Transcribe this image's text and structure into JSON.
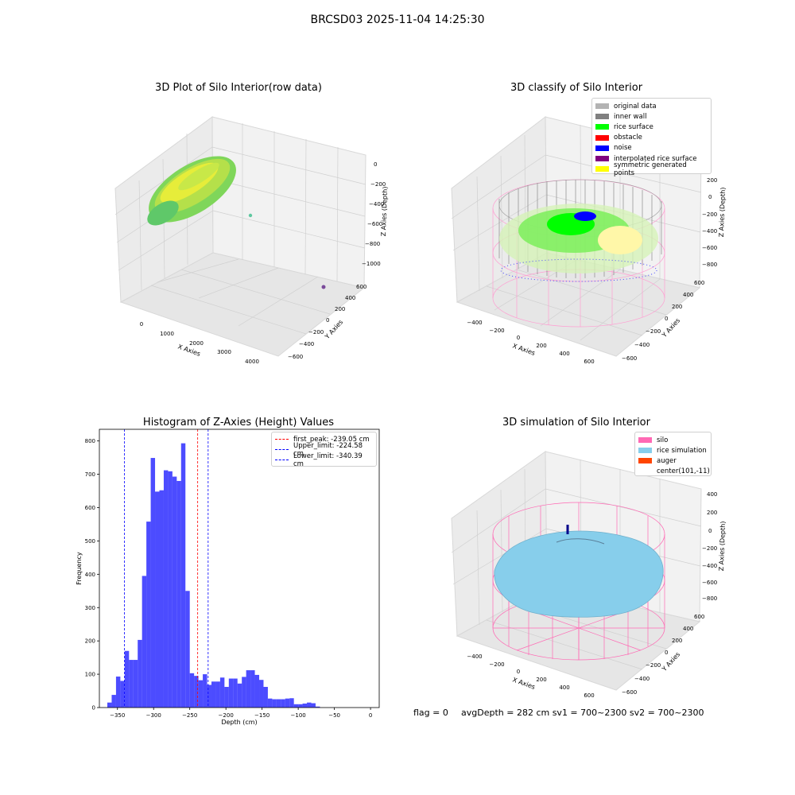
{
  "suptitle": "BRCSD03 2025-11-04 14:25:30",
  "panels": {
    "raw": {
      "title": "3D Plot of Silo Interior(row data)",
      "xlabel": "X Axies",
      "ylabel": "Y Axies",
      "zlabel": "Z Axies (Depth)",
      "xticks": [
        "0",
        "1000",
        "2000",
        "3000",
        "4000"
      ],
      "yticks": [
        "600",
        "400",
        "200",
        "0",
        "−200",
        "−400",
        "−600"
      ],
      "zticks": [
        "0",
        "−200",
        "−400",
        "−600",
        "−800",
        "−1000"
      ]
    },
    "classify": {
      "title": "3D classify of Silo Interior",
      "xlabel": "X Axies",
      "ylabel": "Y Axies",
      "zlabel": "Z Axies (Depth)",
      "xticks": [
        "−400",
        "−200",
        "0",
        "200",
        "400",
        "600"
      ],
      "yticks": [
        "600",
        "400",
        "200",
        "0",
        "−200",
        "−400",
        "−600"
      ],
      "zticks": [
        "200",
        "0",
        "−200",
        "−400",
        "−600",
        "−800"
      ],
      "legend": [
        {
          "label": "original data",
          "color": "#b3b3b3"
        },
        {
          "label": "inner wall",
          "color": "#808080"
        },
        {
          "label": "rice surface",
          "color": "#00ff00"
        },
        {
          "label": "obstacle",
          "color": "#ff0000"
        },
        {
          "label": "noise",
          "color": "#0000ff"
        },
        {
          "label": "interpolated rice surface",
          "color": "#800080"
        },
        {
          "label": "symmetric generated points",
          "color": "#ffff00"
        }
      ]
    },
    "simulation": {
      "title": "3D simulation of Silo Interior",
      "xlabel": "X Axies",
      "ylabel": "Y Axies",
      "zlabel": "Z Axies (Depth)",
      "xticks": [
        "−400",
        "−200",
        "0",
        "200",
        "400",
        "600"
      ],
      "yticks": [
        "600",
        "400",
        "200",
        "0",
        "−200",
        "−400",
        "−600"
      ],
      "zticks": [
        "400",
        "200",
        "0",
        "−200",
        "−400",
        "−600",
        "−800"
      ],
      "legend": [
        {
          "label": "silo",
          "color": "#ff69b4"
        },
        {
          "label": "rice simulation",
          "color": "#87ceeb"
        },
        {
          "label": "auger",
          "color": "#ff4500"
        },
        {
          "label": "center(101,-11)",
          "color": ""
        }
      ]
    }
  },
  "footer": {
    "flag": "flag = 0",
    "avg": "avgDepth = 282 cm  sv1 = 700~2300  sv2 = 700~2300"
  },
  "chart_data": {
    "type": "bar",
    "title": "Histogram of Z-Axies (Height) Values",
    "xlabel": "Depth (cm)",
    "ylabel": "Frequency",
    "xlim": [
      -375,
      12
    ],
    "ylim": [
      0,
      835
    ],
    "xticks": [
      -350,
      -300,
      -250,
      -200,
      -150,
      -100,
      -50,
      0
    ],
    "xtick_labels": [
      "−350",
      "−300",
      "−250",
      "−200",
      "−150",
      "−100",
      "−50",
      "0"
    ],
    "yticks": [
      0,
      100,
      200,
      300,
      400,
      500,
      600,
      700,
      800
    ],
    "bin_start": -364,
    "bin_width": 6,
    "values": [
      15,
      38,
      93,
      80,
      170,
      143,
      143,
      203,
      395,
      558,
      749,
      648,
      652,
      712,
      709,
      693,
      680,
      793,
      350,
      103,
      95,
      82,
      100,
      68,
      78,
      78,
      90,
      62,
      87,
      87,
      72,
      92,
      112,
      112,
      98,
      83,
      62,
      27,
      25,
      25,
      25,
      27,
      28,
      10,
      10,
      12,
      15,
      13,
      3
    ],
    "bar_color": "#0000ff",
    "vlines": [
      {
        "label": "first_peak: -239.05 cm",
        "x": -239.05,
        "color": "#ff0000"
      },
      {
        "label": "Upper_limit: -224.58 cm",
        "x": -224.58,
        "color": "#0000ff"
      },
      {
        "label": "Lower_limit: -340.39 cm",
        "x": -340.39,
        "color": "#0000ff"
      }
    ],
    "legend_position": "upper right"
  }
}
